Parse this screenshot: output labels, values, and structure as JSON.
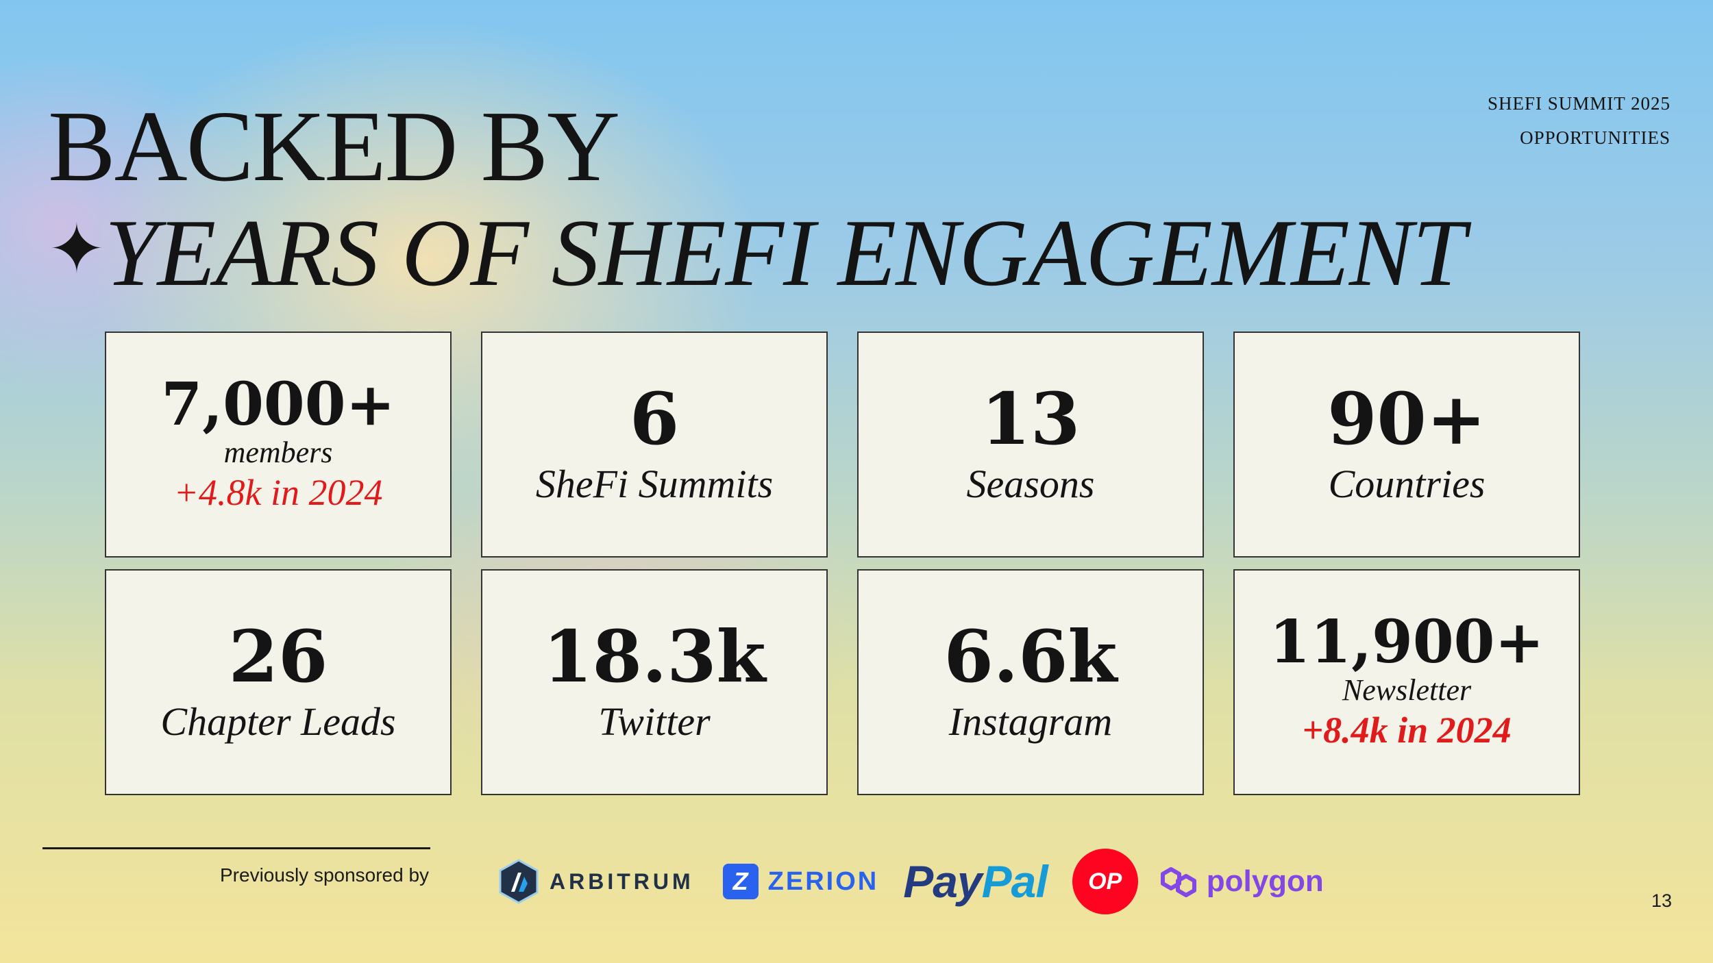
{
  "header": {
    "line1": "BACKED BY",
    "sparkle": "✦",
    "line2": "YEARS OF SHEFI ENGAGEMENT",
    "corner_line1": "SHEFI SUMMIT 2025",
    "corner_line2": "OPPORTUNITIES"
  },
  "stats": [
    {
      "value": "7,000+",
      "label": "members",
      "extra": "+4.8k in 2024"
    },
    {
      "value": "6",
      "label": "SheFi Summits"
    },
    {
      "value": "13",
      "label": "Seasons"
    },
    {
      "value": "90+",
      "label": "Countries"
    },
    {
      "value": "26",
      "label": "Chapter Leads"
    },
    {
      "value": "18.3k",
      "label": "Twitter"
    },
    {
      "value": "6.6k",
      "label": "Instagram"
    },
    {
      "value": "11,900+",
      "label": "Newsletter",
      "extra": "+8.4k in 2024"
    }
  ],
  "footer": {
    "sponsored_label": "Previously sponsored by",
    "sponsors": [
      {
        "name": "ARBITRUM",
        "icon": "arbitrum-logo"
      },
      {
        "name": "ZERION",
        "icon": "zerion-logo"
      },
      {
        "name_part1": "Pay",
        "name_part2": "Pal",
        "icon": "paypal-logo"
      },
      {
        "name": "OP",
        "icon": "optimism-logo"
      },
      {
        "name": "polygon",
        "icon": "polygon-logo"
      }
    ],
    "page_number": "13"
  },
  "colors": {
    "accent_red": "#e01b1b",
    "card_bg": "#f4f3e9",
    "zerion_blue": "#2962ef",
    "paypal_dark": "#253b80",
    "paypal_light": "#179bd7",
    "op_red": "#ff0420",
    "polygon_purple": "#8247e5"
  }
}
